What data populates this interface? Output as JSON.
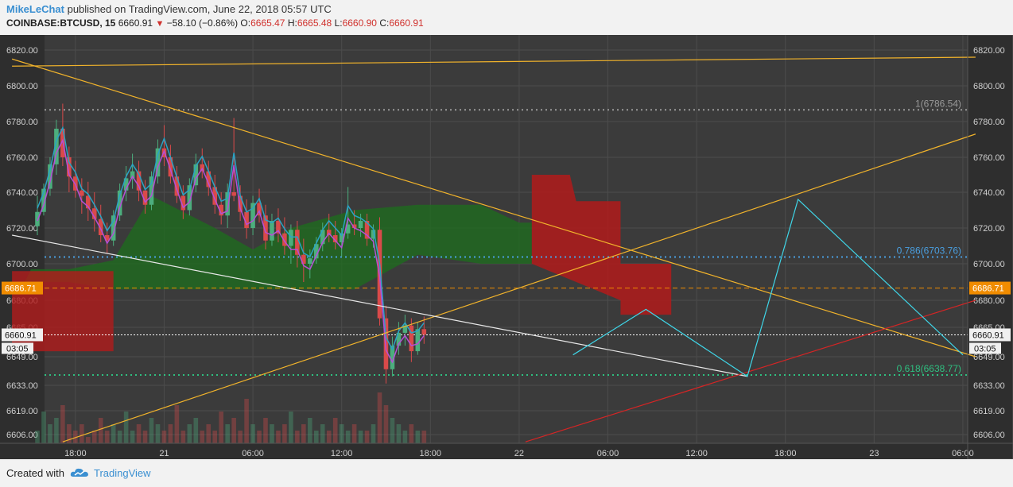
{
  "header": {
    "author": "MikeLeChat",
    "published": "published on TradingView.com, June 22, 2018 05:57 UTC",
    "symbol": "COINBASE:BTCUSD, 15",
    "last": "6660.91",
    "change": "−58.10 (−0.86%)",
    "o_label": "O:",
    "o_val": "6665.47",
    "h_label": "H:",
    "h_val": "6665.48",
    "l_label": "L:",
    "l_val": "6660.90",
    "c_label": "C:",
    "c_val": "6660.91"
  },
  "footer": {
    "created": "Created with",
    "brand": "TradingView"
  },
  "colors": {
    "background": "#3b3b3b",
    "grid": "#4c4c4c",
    "axis_panel": "#2e2e2e",
    "up": "#4cae7d",
    "down": "#d94a4a",
    "cloud_up": "#1f6b1f",
    "cloud_down": "#b21b1b",
    "tenkan": "#2aa3c4",
    "kijun": "#b64fd6",
    "trend": "#f1b32b",
    "white_trend": "#e8e8e8",
    "red_trend": "#d42525",
    "projection": "#3fd6e8",
    "fib_blue": "#4a9fe0",
    "fib_green": "#2fbf80",
    "price_tag": "#f08c00"
  },
  "chart_data": {
    "type": "candlestick",
    "timeframe": "15",
    "y_ticks": [
      "6820.00",
      "6800.00",
      "6780.00",
      "6760.00",
      "6740.00",
      "6720.00",
      "6700.00",
      "6680.00",
      "6665.00",
      "6649.00",
      "6633.00",
      "6619.00",
      "6606.00"
    ],
    "x_ticks": [
      "18:00",
      "21",
      "06:00",
      "12:00",
      "18:00",
      "22",
      "06:00",
      "12:00",
      "18:00",
      "23",
      "06:00"
    ],
    "ylim": [
      6600,
      6830
    ],
    "price_line": {
      "value": 6660.91,
      "label": "6660.91",
      "countdown": "03:05"
    },
    "alert_line": {
      "value": 6686.71,
      "label": "6686.71"
    },
    "fib_levels": [
      {
        "label": "1(6786.54)",
        "value": 6786.54
      },
      {
        "label": "0.786(6703.76)",
        "value": 6703.76
      },
      {
        "label": "0.618(6638.77)",
        "value": 6638.77
      }
    ],
    "trendlines": [
      {
        "name": "upper-flat",
        "from": [
          -4,
          6811
        ],
        "to": [
          148,
          6816
        ]
      },
      {
        "name": "descending",
        "from": [
          -4,
          6815
        ],
        "to": [
          148,
          6649
        ]
      },
      {
        "name": "ascending",
        "from": [
          4,
          6602
        ],
        "to": [
          148,
          6773
        ]
      },
      {
        "name": "white",
        "from": [
          -4,
          6716
        ],
        "to": [
          112,
          6638
        ]
      },
      {
        "name": "red",
        "from": [
          77,
          6602
        ],
        "to": [
          148,
          6680
        ]
      }
    ],
    "projection_path": [
      [
        84.5,
        6650
      ],
      [
        96,
        6675
      ],
      [
        112,
        6638
      ],
      [
        120,
        6736
      ],
      [
        146,
        6650
      ]
    ],
    "candles": [
      [
        6721,
        6738,
        6716,
        6729
      ],
      [
        6729,
        6745,
        6727,
        6742
      ],
      [
        6742,
        6760,
        6738,
        6756
      ],
      [
        6756,
        6781,
        6750,
        6776
      ],
      [
        6776,
        6790,
        6755,
        6760
      ],
      [
        6760,
        6766,
        6740,
        6749
      ],
      [
        6749,
        6758,
        6737,
        6741
      ],
      [
        6741,
        6748,
        6728,
        6738
      ],
      [
        6738,
        6746,
        6724,
        6731
      ],
      [
        6731,
        6740,
        6718,
        6725
      ],
      [
        6725,
        6733,
        6712,
        6716
      ],
      [
        6716,
        6723,
        6706,
        6713
      ],
      [
        6713,
        6730,
        6710,
        6727
      ],
      [
        6727,
        6745,
        6724,
        6741
      ],
      [
        6741,
        6755,
        6735,
        6748
      ],
      [
        6748,
        6762,
        6742,
        6752
      ],
      [
        6752,
        6758,
        6735,
        6741
      ],
      [
        6741,
        6747,
        6728,
        6733
      ],
      [
        6733,
        6752,
        6730,
        6749
      ],
      [
        6749,
        6770,
        6745,
        6765
      ],
      [
        6765,
        6778,
        6755,
        6760
      ],
      [
        6760,
        6767,
        6745,
        6749
      ],
      [
        6749,
        6755,
        6734,
        6738
      ],
      [
        6738,
        6744,
        6725,
        6730
      ],
      [
        6730,
        6748,
        6727,
        6744
      ],
      [
        6744,
        6762,
        6740,
        6756
      ],
      [
        6756,
        6765,
        6748,
        6752
      ],
      [
        6752,
        6758,
        6738,
        6743
      ],
      [
        6743,
        6750,
        6728,
        6733
      ],
      [
        6733,
        6740,
        6722,
        6727
      ],
      [
        6727,
        6745,
        6720,
        6740
      ],
      [
        6740,
        6782,
        6735,
        6738
      ],
      [
        6738,
        6744,
        6724,
        6729
      ],
      [
        6729,
        6736,
        6714,
        6720
      ],
      [
        6720,
        6738,
        6716,
        6734
      ],
      [
        6734,
        6742,
        6723,
        6727
      ],
      [
        6727,
        6733,
        6708,
        6713
      ],
      [
        6713,
        6728,
        6710,
        6724
      ],
      [
        6724,
        6731,
        6712,
        6717
      ],
      [
        6717,
        6726,
        6705,
        6710
      ],
      [
        6710,
        6722,
        6700,
        6719
      ],
      [
        6719,
        6724,
        6698,
        6705
      ],
      [
        6705,
        6714,
        6690,
        6700
      ],
      [
        6700,
        6708,
        6692,
        6703
      ],
      [
        6703,
        6715,
        6700,
        6711
      ],
      [
        6711,
        6723,
        6707,
        6719
      ],
      [
        6719,
        6728,
        6712,
        6716
      ],
      [
        6716,
        6724,
        6708,
        6712
      ],
      [
        6712,
        6720,
        6704,
        6717
      ],
      [
        6717,
        6743,
        6714,
        6722
      ],
      [
        6722,
        6730,
        6716,
        6720
      ],
      [
        6720,
        6728,
        6715,
        6724
      ],
      [
        6724,
        6728,
        6710,
        6714
      ],
      [
        6714,
        6722,
        6709,
        6719
      ],
      [
        6719,
        6726,
        6666,
        6670
      ],
      [
        6670,
        6677,
        6634,
        6642
      ],
      [
        6642,
        6660,
        6638,
        6655
      ],
      [
        6655,
        6668,
        6650,
        6662
      ],
      [
        6662,
        6672,
        6655,
        6666
      ],
      [
        6666,
        6670,
        6646,
        6652
      ],
      [
        6652,
        6668,
        6650,
        6664
      ],
      [
        6664,
        6671,
        6656,
        6661
      ]
    ],
    "volume_ticks": [
      2,
      5,
      3,
      4,
      6,
      3,
      2,
      3,
      1,
      2,
      4,
      2,
      3,
      2,
      5,
      2,
      3,
      2,
      4,
      3,
      2,
      3,
      6,
      2,
      3,
      4,
      2,
      3,
      2,
      5,
      3,
      4,
      2,
      7,
      3,
      2,
      4,
      3,
      2,
      3,
      5,
      2,
      3,
      4,
      2,
      3,
      2,
      4,
      3,
      2,
      3,
      2,
      2,
      3,
      8,
      6,
      4,
      3,
      2,
      3,
      2,
      2
    ]
  }
}
